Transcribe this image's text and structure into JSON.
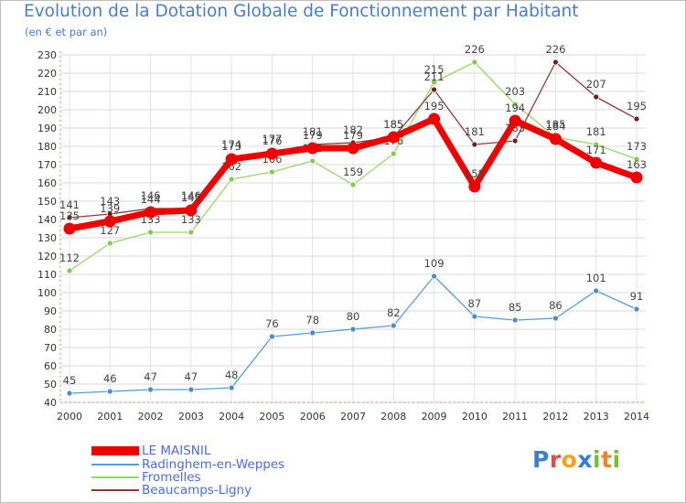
{
  "title": "Evolution de la Dotation Globale de Fonctionnement par Habitant",
  "subtitle": "(en € et par an)",
  "logo_text": "Proxiti",
  "chart_data": {
    "type": "line",
    "title": "Evolution de la Dotation Globale de Fonctionnement par Habitant",
    "subtitle": "(en € et par an)",
    "xlabel": "",
    "ylabel": "",
    "ylim": [
      40,
      230
    ],
    "yticks": [
      40,
      50,
      60,
      70,
      80,
      90,
      100,
      110,
      120,
      130,
      140,
      150,
      160,
      170,
      180,
      190,
      200,
      210,
      220,
      230
    ],
    "grid": true,
    "legend_position": "bottom-left",
    "x": [
      "2000",
      "2001",
      "2002",
      "2003",
      "2004",
      "2005",
      "2006",
      "2007",
      "2008",
      "2009",
      "2010",
      "2011",
      "2012",
      "2013",
      "2014"
    ],
    "series": [
      {
        "name": "Radinghem-en-Weppes",
        "color": "#5b9bd5",
        "marker": "#4a8ad0",
        "values": [
          45,
          46,
          47,
          47,
          48,
          76,
          78,
          80,
          82,
          109,
          87,
          85,
          86,
          101,
          91
        ]
      },
      {
        "name": "Fromelles",
        "color": "#9ad56a",
        "marker": "#82c94e",
        "values": [
          112,
          127,
          133,
          133,
          162,
          166,
          172,
          159,
          176,
          215,
          226,
          203,
          185,
          181,
          173
        ]
      },
      {
        "name": "Beaucamps-Ligny",
        "color": "#8b3a3a",
        "marker": "#6e1f1f",
        "values": [
          141,
          143,
          146,
          146,
          174,
          177,
          181,
          182,
          185,
          211,
          181,
          183,
          226,
          207,
          195
        ]
      },
      {
        "name": "LE MAISNIL",
        "color": "#ee0000",
        "marker": "#ee0000",
        "values": [
          135,
          139,
          144,
          145,
          173,
          176,
          179,
          179,
          185,
          195,
          158,
          194,
          184,
          171,
          163
        ]
      }
    ],
    "legend_order": [
      "LE MAISNIL",
      "Radinghem-en-Weppes",
      "Fromelles",
      "Beaucamps-Ligny"
    ]
  }
}
